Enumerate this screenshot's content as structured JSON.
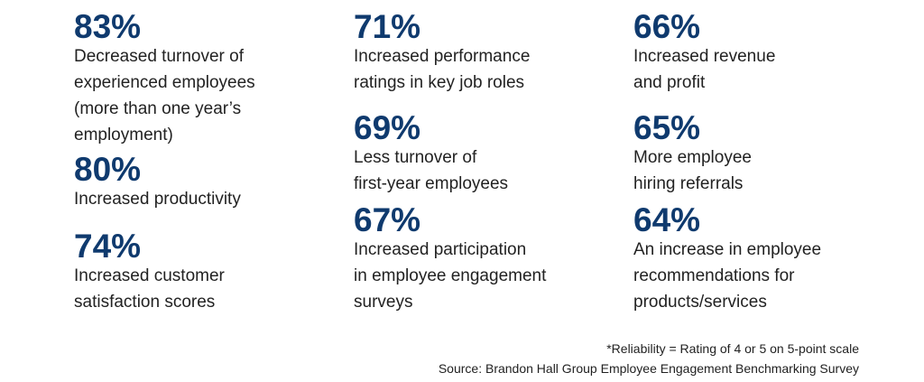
{
  "stats": [
    {
      "value": "83%",
      "lines": [
        "Decreased turnover of",
        "experienced employees",
        "(more than one year’s",
        "employment)"
      ]
    },
    {
      "value": "80%",
      "lines": [
        "Increased productivity"
      ]
    },
    {
      "value": "74%",
      "lines": [
        "Increased customer",
        "satisfaction scores"
      ]
    },
    {
      "value": "71%",
      "lines": [
        "Increased performance",
        "ratings in key job roles"
      ]
    },
    {
      "value": "69%",
      "lines": [
        "Less turnover of",
        "first-year employees"
      ]
    },
    {
      "value": "67%",
      "lines": [
        "Increased participation",
        "in employee engagement",
        "surveys"
      ]
    },
    {
      "value": "66%",
      "lines": [
        "Increased revenue",
        "and profit"
      ]
    },
    {
      "value": "65%",
      "lines": [
        "More employee",
        "hiring referrals"
      ]
    },
    {
      "value": "64%",
      "lines": [
        "An increase in employee",
        "recommendations for",
        "products/services"
      ]
    }
  ],
  "footnote": "*Reliability = Rating of 4 or 5 on 5-point scale",
  "source": "Source: Brandon Hall Group Employee Engagement Benchmarking Survey",
  "colors": {
    "accent": "#0f3a6e",
    "text": "#222222"
  }
}
